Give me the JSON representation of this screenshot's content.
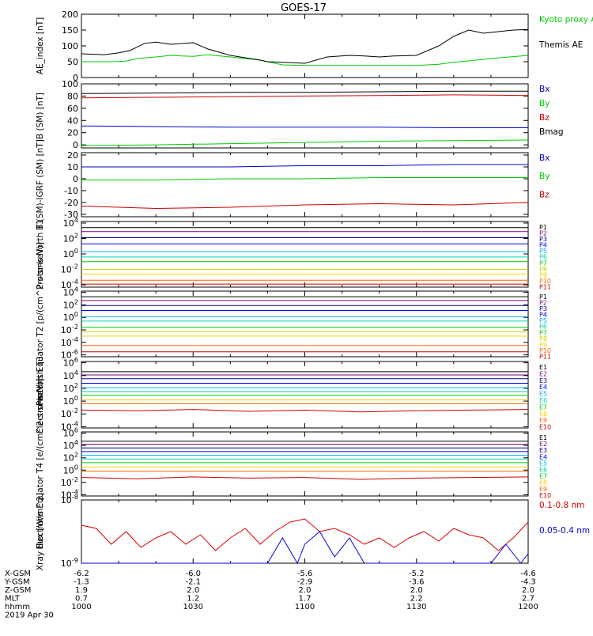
{
  "title": "GOES-17",
  "chart_data": [
    {
      "type": "line",
      "ylabel": "AE_index [nT]",
      "ylim": [
        0,
        200
      ],
      "yticks": [
        "0",
        "50",
        "100",
        "150",
        "200"
      ],
      "x": [
        "1000",
        "1030",
        "1100",
        "1130",
        "1200"
      ],
      "series": [
        {
          "name": "Kyoto proxy AE",
          "color": "#00cc00",
          "x": [
            1000,
            1009,
            1012,
            1015,
            1020,
            1024,
            1027,
            1030,
            1034,
            1040,
            1048,
            1054,
            1100,
            1110,
            1120,
            1126,
            1130,
            1136,
            1140,
            1146,
            1150,
            1155,
            1200
          ],
          "values": [
            50,
            50,
            52,
            60,
            65,
            70,
            68,
            67,
            72,
            65,
            55,
            40,
            38,
            38,
            38,
            38,
            38,
            42,
            48,
            55,
            60,
            65,
            70
          ]
        },
        {
          "name": "Themis AE",
          "color": "#000000",
          "x": [
            1000,
            1006,
            1010,
            1013,
            1017,
            1020,
            1024,
            1030,
            1034,
            1040,
            1048,
            1050,
            1054,
            1100,
            1106,
            1112,
            1116,
            1120,
            1124,
            1130,
            1136,
            1140,
            1144,
            1148,
            1152,
            1156,
            1200
          ],
          "values": [
            75,
            72,
            78,
            85,
            108,
            112,
            105,
            110,
            90,
            70,
            55,
            50,
            48,
            45,
            65,
            70,
            68,
            65,
            68,
            70,
            100,
            130,
            150,
            140,
            145,
            150,
            152
          ]
        }
      ]
    },
    {
      "type": "line",
      "ylabel": "B (SM) [nT]",
      "ylim": [
        -5,
        100
      ],
      "yticks": [
        "0",
        "20",
        "40",
        "60",
        "80",
        "100"
      ],
      "series": [
        {
          "name": "Bx",
          "color": "#0000cc",
          "x": [
            1000,
            1020,
            1040,
            1100,
            1120,
            1140,
            1200
          ],
          "values": [
            31,
            30,
            29,
            29,
            29,
            28,
            28
          ]
        },
        {
          "name": "By",
          "color": "#00cc00",
          "x": [
            1000,
            1020,
            1040,
            1100,
            1120,
            1140,
            1200
          ],
          "values": [
            -1,
            0,
            2,
            4,
            6,
            7,
            8
          ]
        },
        {
          "name": "Bz",
          "color": "#cc0000",
          "x": [
            1000,
            1020,
            1040,
            1100,
            1120,
            1140,
            1200
          ],
          "values": [
            77,
            78,
            79,
            80,
            81,
            82,
            81
          ]
        },
        {
          "name": "Bmag",
          "color": "#000000",
          "x": [
            1000,
            1020,
            1040,
            1100,
            1120,
            1140,
            1200
          ],
          "values": [
            84,
            85,
            86,
            86,
            87,
            88,
            88
          ]
        }
      ]
    },
    {
      "type": "line",
      "ylabel": "B (SM)-IGRF (SM) [nT]",
      "ylim": [
        -32,
        22
      ],
      "yticks": [
        "-30",
        "-20",
        "-10",
        "0",
        "10",
        "20"
      ],
      "series": [
        {
          "name": "Bx",
          "color": "#0000cc",
          "x": [
            1000,
            1020,
            1040,
            1100,
            1120,
            1140,
            1200
          ],
          "values": [
            10,
            10,
            10,
            11,
            11,
            12,
            12
          ]
        },
        {
          "name": "By",
          "color": "#00cc00",
          "x": [
            1000,
            1020,
            1040,
            1100,
            1120,
            1140,
            1200
          ],
          "values": [
            -1,
            -1,
            0,
            0,
            1,
            1,
            1
          ]
        },
        {
          "name": "Bz",
          "color": "#cc0000",
          "x": [
            1000,
            1020,
            1040,
            1100,
            1120,
            1140,
            1200
          ],
          "values": [
            -23,
            -25,
            -24,
            -22,
            -21,
            -22,
            -20
          ]
        }
      ]
    },
    {
      "type": "line",
      "ylabel": "Protons North T1",
      "ylog": true,
      "ylim": [
        -4.3,
        4.2
      ],
      "yticks": [
        "10^4",
        "10^2",
        "10^0",
        "10^-2",
        "10^-4"
      ],
      "series": [
        {
          "name": "P1",
          "color": "#000000",
          "x": [
            1000,
            1200
          ],
          "values": [
            3.4,
            3.4
          ]
        },
        {
          "name": "P2",
          "color": "#7a007a",
          "x": [
            1000,
            1200
          ],
          "values": [
            2.9,
            2.9
          ]
        },
        {
          "name": "P3",
          "color": "#000088",
          "x": [
            1000,
            1200
          ],
          "values": [
            2.1,
            2.1
          ]
        },
        {
          "name": "P4",
          "color": "#0000ff",
          "x": [
            1000,
            1200
          ],
          "values": [
            1.3,
            1.3
          ]
        },
        {
          "name": "P5",
          "color": "#00b0ff",
          "x": [
            1000,
            1200
          ],
          "values": [
            0.3,
            0.3
          ]
        },
        {
          "name": "P6",
          "color": "#00d0b0",
          "x": [
            1000,
            1200
          ],
          "values": [
            -0.4,
            -0.4
          ]
        },
        {
          "name": "P7",
          "color": "#00cc00",
          "x": [
            1000,
            1200
          ],
          "values": [
            -1.0,
            -1.0
          ]
        },
        {
          "name": "P8",
          "color": "#c8d800",
          "x": [
            1000,
            1200
          ],
          "values": [
            -2.0,
            -2.0
          ]
        },
        {
          "name": "P9",
          "color": "#ffd000",
          "x": [
            1000,
            1200
          ],
          "values": [
            -2.6,
            -2.6
          ]
        },
        {
          "name": "P10",
          "color": "#ff6600",
          "x": [
            1000,
            1200
          ],
          "values": [
            -3.4,
            -3.4
          ]
        },
        {
          "name": "P11",
          "color": "#cc0000",
          "x": [
            1000,
            1200
          ],
          "values": [
            -3.9,
            -3.9
          ]
        }
      ]
    },
    {
      "type": "line",
      "ylabel": "Protons Equator T2 [p/(cm^2-s-sr-keV)]",
      "ylog": true,
      "ylim": [
        -6.3,
        4.2
      ],
      "yticks": [
        "10^4",
        "10^2",
        "10^0",
        "10^-2",
        "10^-4",
        "10^-6"
      ],
      "series": [
        {
          "name": "P1",
          "color": "#000000",
          "x": [
            1000,
            1200
          ],
          "values": [
            3.3,
            3.3
          ]
        },
        {
          "name": "P2",
          "color": "#7a007a",
          "x": [
            1000,
            1200
          ],
          "values": [
            2.7,
            2.7
          ]
        },
        {
          "name": "P3",
          "color": "#000088",
          "x": [
            1000,
            1200
          ],
          "values": [
            1.9,
            1.9
          ]
        },
        {
          "name": "P4",
          "color": "#0000ff",
          "x": [
            1000,
            1200
          ],
          "values": [
            1.1,
            1.1
          ]
        },
        {
          "name": "P5",
          "color": "#00b0ff",
          "x": [
            1000,
            1200
          ],
          "values": [
            0.1,
            0.1
          ]
        },
        {
          "name": "P6",
          "color": "#00d0b0",
          "x": [
            1000,
            1200
          ],
          "values": [
            -0.6,
            -0.6
          ]
        },
        {
          "name": "P7",
          "color": "#00cc00",
          "x": [
            1000,
            1200
          ],
          "values": [
            -1.6,
            -1.6
          ]
        },
        {
          "name": "P8",
          "color": "#c8d800",
          "x": [
            1000,
            1200
          ],
          "values": [
            -2.3,
            -2.3
          ]
        },
        {
          "name": "P9",
          "color": "#ffd000",
          "x": [
            1000,
            1200
          ],
          "values": [
            -3.0,
            -3.0
          ]
        },
        {
          "name": "P10",
          "color": "#ff6600",
          "x": [
            1000,
            1200
          ],
          "values": [
            -4.5,
            -4.5
          ]
        },
        {
          "name": "P11",
          "color": "#cc0000",
          "x": [
            1000,
            1200
          ],
          "values": [
            -5.5,
            -5.5
          ]
        }
      ]
    },
    {
      "type": "line",
      "ylabel": "Electrons North T3",
      "ylog": true,
      "ylim": [
        -4.2,
        6.2
      ],
      "yticks": [
        "10^6",
        "10^4",
        "10^2",
        "10^0",
        "10^-2",
        "10^-4"
      ],
      "series": [
        {
          "name": "E1",
          "color": "#000000",
          "x": [
            1000,
            1200
          ],
          "values": [
            4.6,
            4.6
          ]
        },
        {
          "name": "E2",
          "color": "#7a007a",
          "x": [
            1000,
            1200
          ],
          "values": [
            4.1,
            4.1
          ]
        },
        {
          "name": "E3",
          "color": "#000088",
          "x": [
            1000,
            1200
          ],
          "values": [
            3.5,
            3.5
          ]
        },
        {
          "name": "E4",
          "color": "#0000ff",
          "x": [
            1000,
            1200
          ],
          "values": [
            2.8,
            2.8
          ]
        },
        {
          "name": "E5",
          "color": "#00b0ff",
          "x": [
            1000,
            1200
          ],
          "values": [
            2.1,
            2.1
          ]
        },
        {
          "name": "E6",
          "color": "#00d0b0",
          "x": [
            1000,
            1200
          ],
          "values": [
            1.5,
            1.5
          ]
        },
        {
          "name": "E7",
          "color": "#00cc00",
          "x": [
            1000,
            1200
          ],
          "values": [
            0.9,
            0.9
          ]
        },
        {
          "name": "E8",
          "color": "#ffd000",
          "x": [
            1000,
            1200
          ],
          "values": [
            0.2,
            0.2
          ]
        },
        {
          "name": "E9",
          "color": "#ff6600",
          "x": [
            1000,
            1200
          ],
          "values": [
            -0.4,
            -0.4
          ]
        },
        {
          "name": "E10",
          "color": "#cc0000",
          "x": [
            1000,
            1015,
            1030,
            1045,
            1100,
            1115,
            1130,
            1145,
            1200
          ],
          "values": [
            -1.4,
            -1.5,
            -1.3,
            -1.6,
            -1.4,
            -1.7,
            -1.5,
            -1.4,
            -1.3
          ]
        }
      ]
    },
    {
      "type": "line",
      "ylabel": "Electrons Equator T4 [e/(cm^2-s-sr-keV)]",
      "ylog": true,
      "ylim": [
        -4.2,
        6.2
      ],
      "yticks": [
        "10^6",
        "10^4",
        "10^2",
        "10^0",
        "10^-2",
        "10^-4"
      ],
      "series": [
        {
          "name": "E1",
          "color": "#000000",
          "x": [
            1000,
            1200
          ],
          "values": [
            4.7,
            4.7
          ]
        },
        {
          "name": "E2",
          "color": "#7a007a",
          "x": [
            1000,
            1200
          ],
          "values": [
            4.2,
            4.2
          ]
        },
        {
          "name": "E3",
          "color": "#000088",
          "x": [
            1000,
            1200
          ],
          "values": [
            3.6,
            3.6
          ]
        },
        {
          "name": "E4",
          "color": "#0000ff",
          "x": [
            1000,
            1200
          ],
          "values": [
            3.0,
            3.0
          ]
        },
        {
          "name": "E5",
          "color": "#00b0ff",
          "x": [
            1000,
            1200
          ],
          "values": [
            2.4,
            2.4
          ]
        },
        {
          "name": "E6",
          "color": "#00d0b0",
          "x": [
            1000,
            1200
          ],
          "values": [
            1.8,
            1.8
          ]
        },
        {
          "name": "E7",
          "color": "#00cc00",
          "x": [
            1000,
            1200
          ],
          "values": [
            1.2,
            1.2
          ]
        },
        {
          "name": "E8",
          "color": "#ffd000",
          "x": [
            1000,
            1200
          ],
          "values": [
            0.5,
            0.5
          ]
        },
        {
          "name": "E9",
          "color": "#ff6600",
          "x": [
            1000,
            1200
          ],
          "values": [
            -0.2,
            -0.2
          ]
        },
        {
          "name": "E10",
          "color": "#cc0000",
          "x": [
            1000,
            1015,
            1030,
            1045,
            1100,
            1115,
            1130,
            1145,
            1200
          ],
          "values": [
            -1.2,
            -1.4,
            -1.1,
            -1.3,
            -1.2,
            -1.5,
            -1.3,
            -1.2,
            -1.1
          ]
        }
      ]
    },
    {
      "type": "line",
      "ylabel": "Xray flux [W/m^2]",
      "ylog": true,
      "ylim": [
        -9,
        -8
      ],
      "yticks": [
        "10^-8",
        "10^-9"
      ],
      "series": [
        {
          "name": "0.1-0.8 nm",
          "color": "#dd0000",
          "x": [
            1000,
            1004,
            1008,
            1012,
            1016,
            1020,
            1024,
            1028,
            1032,
            1036,
            1040,
            1044,
            1048,
            1052,
            1056,
            1100,
            1104,
            1108,
            1112,
            1116,
            1120,
            1124,
            1128,
            1132,
            1136,
            1140,
            1144,
            1148,
            1152,
            1156,
            1200
          ],
          "values": [
            -8.4,
            -8.45,
            -8.7,
            -8.5,
            -8.75,
            -8.6,
            -8.5,
            -8.7,
            -8.55,
            -8.8,
            -8.6,
            -8.45,
            -8.7,
            -8.5,
            -8.35,
            -8.3,
            -8.5,
            -8.45,
            -8.55,
            -8.7,
            -8.6,
            -8.75,
            -8.6,
            -8.5,
            -8.65,
            -8.45,
            -8.55,
            -8.6,
            -8.8,
            -8.6,
            -8.35
          ]
        },
        {
          "name": "0.05-0.4 nm",
          "color": "#0000dd",
          "x": [
            1000,
            1030,
            1050,
            1054,
            1058,
            1100,
            1104,
            1108,
            1112,
            1116,
            1120,
            1140,
            1150,
            1154,
            1158,
            1200
          ],
          "values": [
            -9.0,
            -9.0,
            -9.0,
            -8.6,
            -9.0,
            -8.7,
            -8.5,
            -8.9,
            -8.6,
            -9.0,
            -9.0,
            -9.0,
            -9.0,
            -8.7,
            -9.0,
            -8.85
          ]
        }
      ]
    }
  ],
  "xaxis": {
    "rows": [
      {
        "label": "X-GSM",
        "values": [
          "-6.2",
          "-6.0",
          "-5.6",
          "-5.2",
          "-4.6"
        ]
      },
      {
        "label": "Y-GSM",
        "values": [
          "-1.3",
          "-2.1",
          "-2.9",
          "-3.6",
          "-4.3"
        ]
      },
      {
        "label": "Z-GSM",
        "values": [
          "1.9",
          "2.0",
          "2.0",
          "2.0",
          "2.0"
        ]
      },
      {
        "label": "MLT",
        "values": [
          "0.7",
          "1.2",
          "1.7",
          "2.2",
          "2.7"
        ]
      },
      {
        "label": "hhmm",
        "values": [
          "1000",
          "1030",
          "1100",
          "1130",
          "1200"
        ]
      }
    ],
    "date": "2019 Apr 30"
  }
}
